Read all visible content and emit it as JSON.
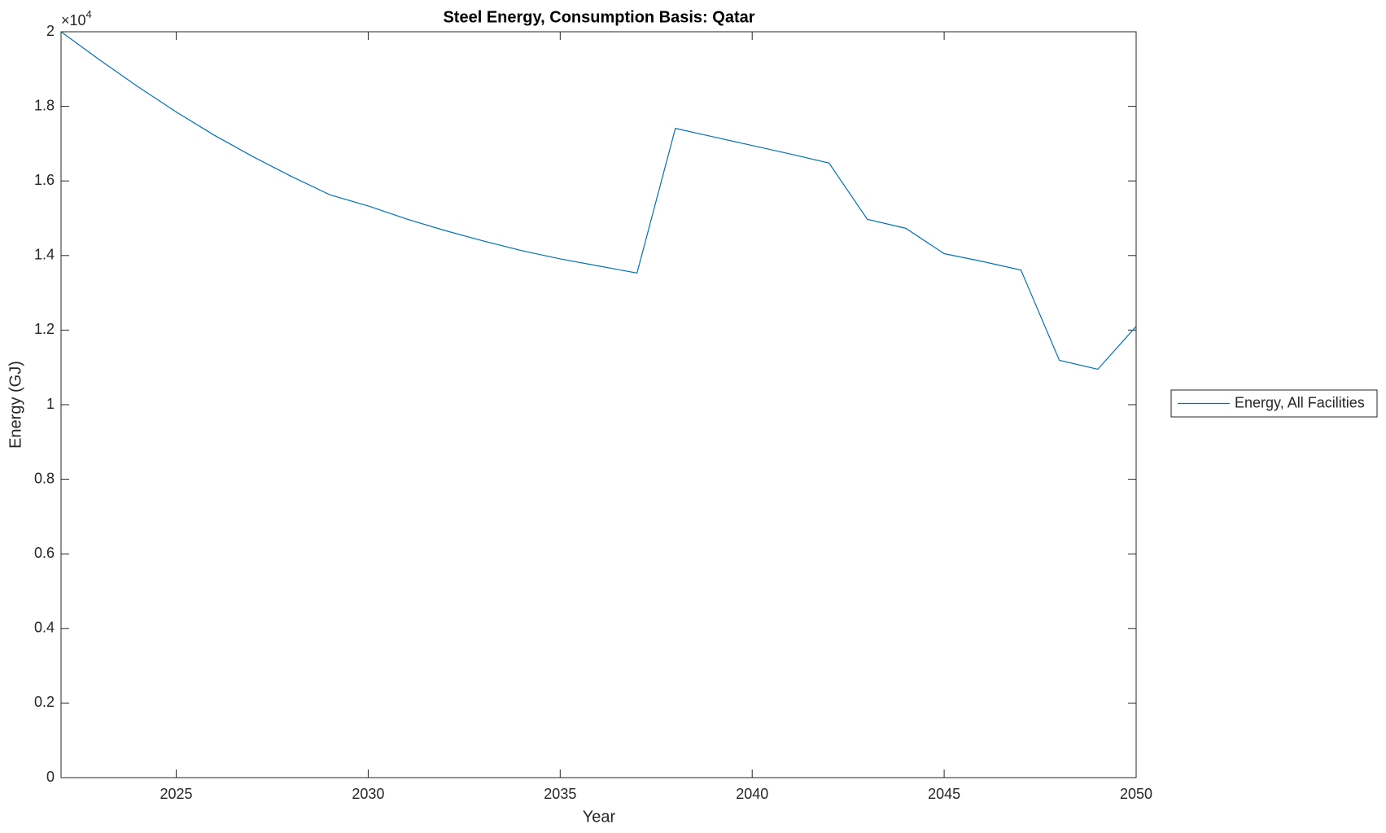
{
  "chart_data": {
    "type": "line",
    "title": "Steel Energy, Consumption Basis: Qatar",
    "x_label": "Year",
    "y_label": "Energy (GJ)",
    "y_multiplier": {
      "base": "×10",
      "exponent": "4"
    },
    "x": [
      2022,
      2023,
      2024,
      2025,
      2026,
      2027,
      2028,
      2029,
      2030,
      2031,
      2032,
      2033,
      2034,
      2035,
      2036,
      2037,
      2038,
      2039,
      2040,
      2041,
      2042,
      2043,
      2044,
      2045,
      2046,
      2047,
      2048,
      2049,
      2050
    ],
    "series": [
      {
        "name": "Energy, All Facilities",
        "color": "#0072bd",
        "values": [
          2.0,
          1.925,
          1.853,
          1.785,
          1.722,
          1.665,
          1.612,
          1.563,
          1.533,
          1.498,
          1.467,
          1.439,
          1.413,
          1.391,
          1.372,
          1.353,
          1.741,
          1.718,
          1.695,
          1.672,
          1.648,
          1.497,
          1.473,
          1.405,
          1.384,
          1.361,
          1.119,
          1.095,
          1.21
        ]
      }
    ],
    "xlim": [
      2022,
      2050
    ],
    "xticks": [
      2025,
      2030,
      2035,
      2040,
      2045,
      2050
    ],
    "ylim": [
      0,
      2
    ],
    "yticks": [
      0,
      0.2,
      0.4,
      0.6,
      0.8,
      1,
      1.2,
      1.4,
      1.6,
      1.8,
      2
    ],
    "grid": false,
    "legend": "outside-right"
  }
}
